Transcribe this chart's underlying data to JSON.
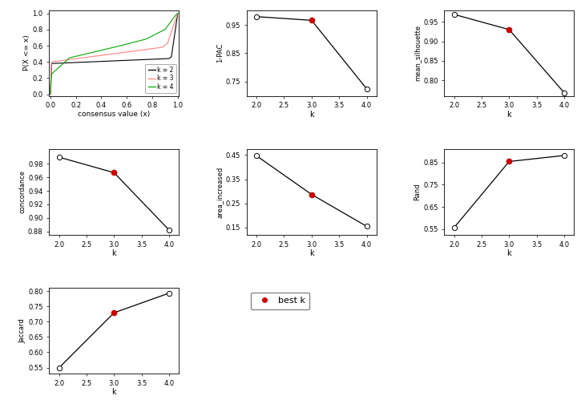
{
  "ecdf": {
    "k2": {
      "color": "#000000",
      "label": "k = 2"
    },
    "k3": {
      "color": "#FF8080",
      "label": "k = 3"
    },
    "k4": {
      "color": "#00AA00",
      "label": "k = 4"
    }
  },
  "pac": {
    "k": [
      2,
      3,
      4
    ],
    "y": [
      0.979,
      0.966,
      0.725
    ],
    "best_k": 3,
    "ylabel": "1-PAC",
    "ylim": [
      0.7,
      1.002
    ],
    "yticks": [
      0.75,
      0.85,
      0.95
    ]
  },
  "silhouette": {
    "k": [
      2,
      3,
      4
    ],
    "y": [
      0.969,
      0.93,
      0.768
    ],
    "best_k": 3,
    "ylabel": "mean_silhouette",
    "ylim": [
      0.76,
      0.98
    ],
    "yticks": [
      0.8,
      0.85,
      0.9,
      0.95
    ]
  },
  "concordance": {
    "k": [
      2,
      3,
      4
    ],
    "y": [
      0.99,
      0.967,
      0.882
    ],
    "best_k": 3,
    "ylabel": "concordance",
    "ylim": [
      0.875,
      1.002
    ],
    "yticks": [
      0.88,
      0.9,
      0.92,
      0.94,
      0.96,
      0.98
    ]
  },
  "area_increased": {
    "k": [
      2,
      3,
      4
    ],
    "y": [
      0.447,
      0.287,
      0.155
    ],
    "best_k": 3,
    "ylabel": "area_increased",
    "ylim": [
      0.12,
      0.475
    ],
    "yticks": [
      0.15,
      0.25,
      0.35,
      0.45
    ]
  },
  "rand": {
    "k": [
      2,
      3,
      4
    ],
    "y": [
      0.557,
      0.854,
      0.881
    ],
    "best_k": 3,
    "ylabel": "Rand",
    "ylim": [
      0.525,
      0.91
    ],
    "yticks": [
      0.55,
      0.65,
      0.75,
      0.85
    ]
  },
  "jaccard": {
    "k": [
      2,
      3,
      4
    ],
    "y": [
      0.549,
      0.729,
      0.793
    ],
    "best_k": 3,
    "ylabel": "Jaccard",
    "ylim": [
      0.53,
      0.81
    ],
    "yticks": [
      0.55,
      0.6,
      0.65,
      0.7,
      0.75,
      0.8
    ]
  },
  "bg_color": "#FFFFFF",
  "line_color": "#000000",
  "best_color": "#CC0000",
  "open_color": "#000000",
  "spine_color": "#000000"
}
